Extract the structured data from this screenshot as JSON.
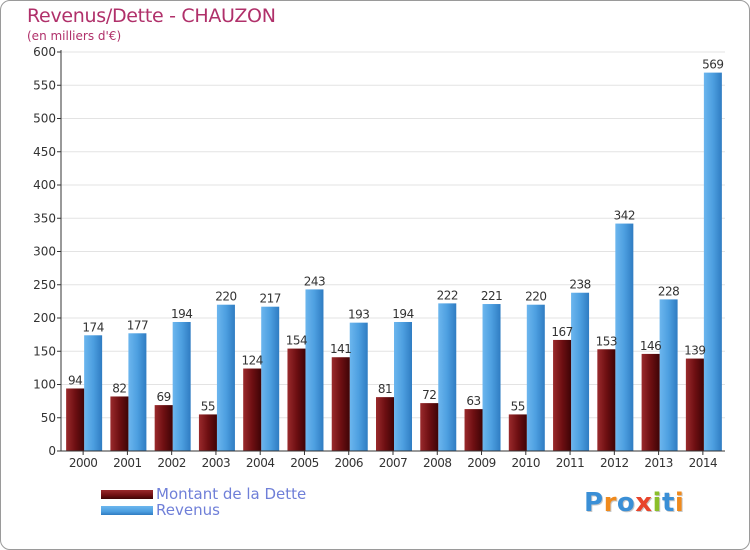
{
  "header": {
    "title": "Revenus/Dette - CHAUZON",
    "subtitle": "(en milliers d'€)"
  },
  "colors": {
    "dette": "#6e0f12",
    "revenus": "#4d9fe0",
    "title": "#b0306a",
    "legend_text": "#6f7fd8"
  },
  "legend": {
    "items": [
      {
        "label": "Montant de la Dette",
        "color": "#6e0f12"
      },
      {
        "label": "Revenus",
        "color": "#4d9fe0"
      }
    ]
  },
  "logo": {
    "text": "Proxiti",
    "letter_colors": [
      "#3a8fd6",
      "#f08a1c",
      "#3a8fd6",
      "#e8452c",
      "#8bbf2a",
      "#3a8fd6",
      "#f08a1c"
    ]
  },
  "chart_data": {
    "type": "bar",
    "title": "Revenus/Dette - CHAUZON",
    "subtitle": "(en milliers d'€)",
    "categories": [
      "2000",
      "2001",
      "2002",
      "2003",
      "2004",
      "2005",
      "2006",
      "2007",
      "2008",
      "2009",
      "2010",
      "2011",
      "2012",
      "2013",
      "2014"
    ],
    "series": [
      {
        "name": "Montant de la Dette",
        "values": [
          94,
          82,
          69,
          55,
          124,
          154,
          141,
          81,
          72,
          63,
          55,
          167,
          153,
          146,
          139
        ]
      },
      {
        "name": "Revenus",
        "values": [
          174,
          177,
          194,
          220,
          217,
          243,
          193,
          194,
          222,
          221,
          220,
          238,
          342,
          228,
          569
        ]
      }
    ],
    "ylim": [
      0,
      600
    ],
    "yticks": [
      0,
      50,
      100,
      150,
      200,
      250,
      300,
      350,
      400,
      450,
      500,
      550,
      600
    ],
    "grid": true,
    "legend_position": "bottom-left"
  }
}
